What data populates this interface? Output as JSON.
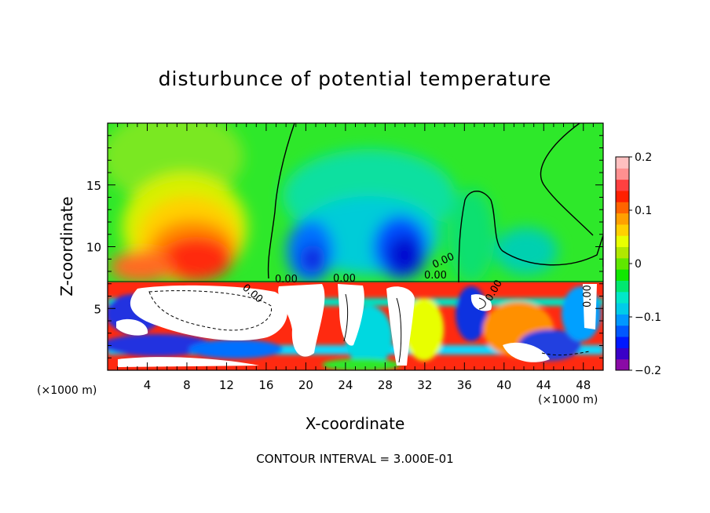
{
  "chart_data": {
    "type": "heatmap",
    "title": "disturbunce of potential temperature",
    "xlabel": "X-coordinate",
    "ylabel": "Z-coordinate",
    "x_unit_left": "(×1000 m)",
    "x_unit_right": "(×1000 m)",
    "x_ticks": [
      "4",
      "8",
      "12",
      "16",
      "20",
      "24",
      "28",
      "32",
      "36",
      "40",
      "44",
      "48"
    ],
    "y_ticks": [
      "5",
      "10",
      "15"
    ],
    "xlim": [
      0,
      50
    ],
    "ylim": [
      0,
      20
    ],
    "colorbar": {
      "range": [
        -0.2,
        0.2
      ],
      "tick_labels": [
        "0.2",
        "0.1",
        "0",
        "−0.1",
        "−0.2"
      ],
      "colors": [
        "#8a0aa6",
        "#3a00c8",
        "#0018ff",
        "#0058ff",
        "#0098ff",
        "#00cce8",
        "#00e8c8",
        "#00e870",
        "#10e800",
        "#60e800",
        "#b0e800",
        "#e8ff00",
        "#ffd000",
        "#ffa000",
        "#ff6400",
        "#ff2000",
        "#ff4040",
        "#ff9090",
        "#ffc0c0"
      ]
    },
    "contour_labels": [
      "0.00",
      "0.00",
      "0.00",
      "0.00",
      "0.00",
      "0.00",
      "0.00"
    ],
    "contour_note": "CONTOUR INTERVAL = 3.000E-01"
  }
}
